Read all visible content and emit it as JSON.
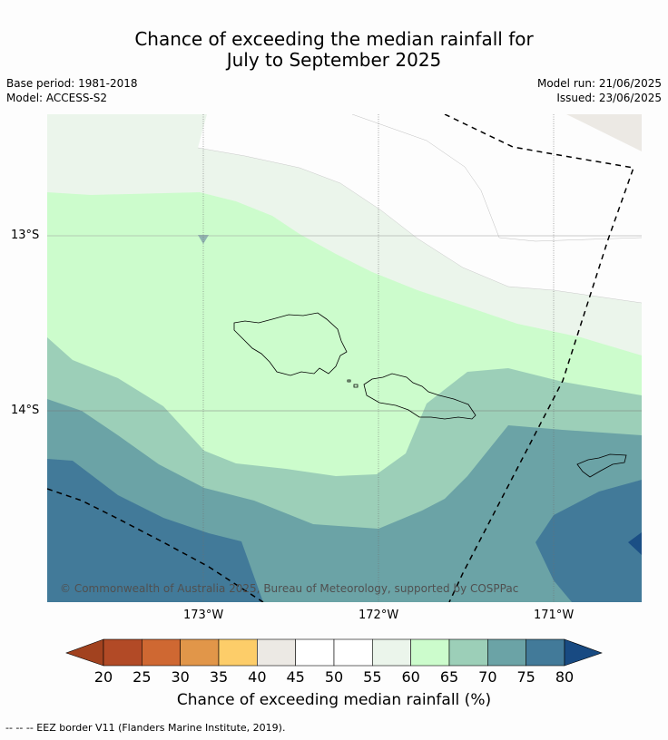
{
  "header": {
    "title_line1": "Chance of exceeding the median rainfall for",
    "title_line2": "July to September 2025",
    "base_period": "Base period: 1981-2018",
    "model": "Model: ACCESS-S2",
    "model_run": "Model run: 21/06/2025",
    "issued": "Issued: 23/06/2025"
  },
  "map": {
    "lat_labels": [
      "13°S",
      "14°S"
    ],
    "lon_labels": [
      "173°W",
      "172°W",
      "171°W"
    ],
    "copyright": "© Commonwealth of Australia 2025, Bureau of Meteorology, supported by COSPPac",
    "colors": {
      "c45_55": "#fdfdfd",
      "c55_60": "#ebf5eb",
      "c60_65": "#ccfccc",
      "c65_70": "#9ccfb8",
      "c70_75": "#6ba3a6",
      "c75_80": "#427a99",
      "c80plus": "#1b4f85",
      "c40_45": "#ece9e4"
    }
  },
  "colorbar": {
    "ticks": [
      "20",
      "25",
      "30",
      "35",
      "40",
      "45",
      "50",
      "55",
      "60",
      "65",
      "70",
      "75",
      "80"
    ],
    "colors": [
      "#b24a26",
      "#cf6832",
      "#e19649",
      "#fdcd69",
      "#ece9e4",
      "#ffffff",
      "#ffffff",
      "#ebf5eb",
      "#ccfccc",
      "#9ccfb8",
      "#6ba3a6",
      "#427a99"
    ],
    "under_color": "#a2421f",
    "over_color": "#184a82",
    "label": "Chance of exceeding median rainfall (%)"
  },
  "footnote": "--  --  -- EEZ border V11 (Flanders Marine Institute, 2019)."
}
